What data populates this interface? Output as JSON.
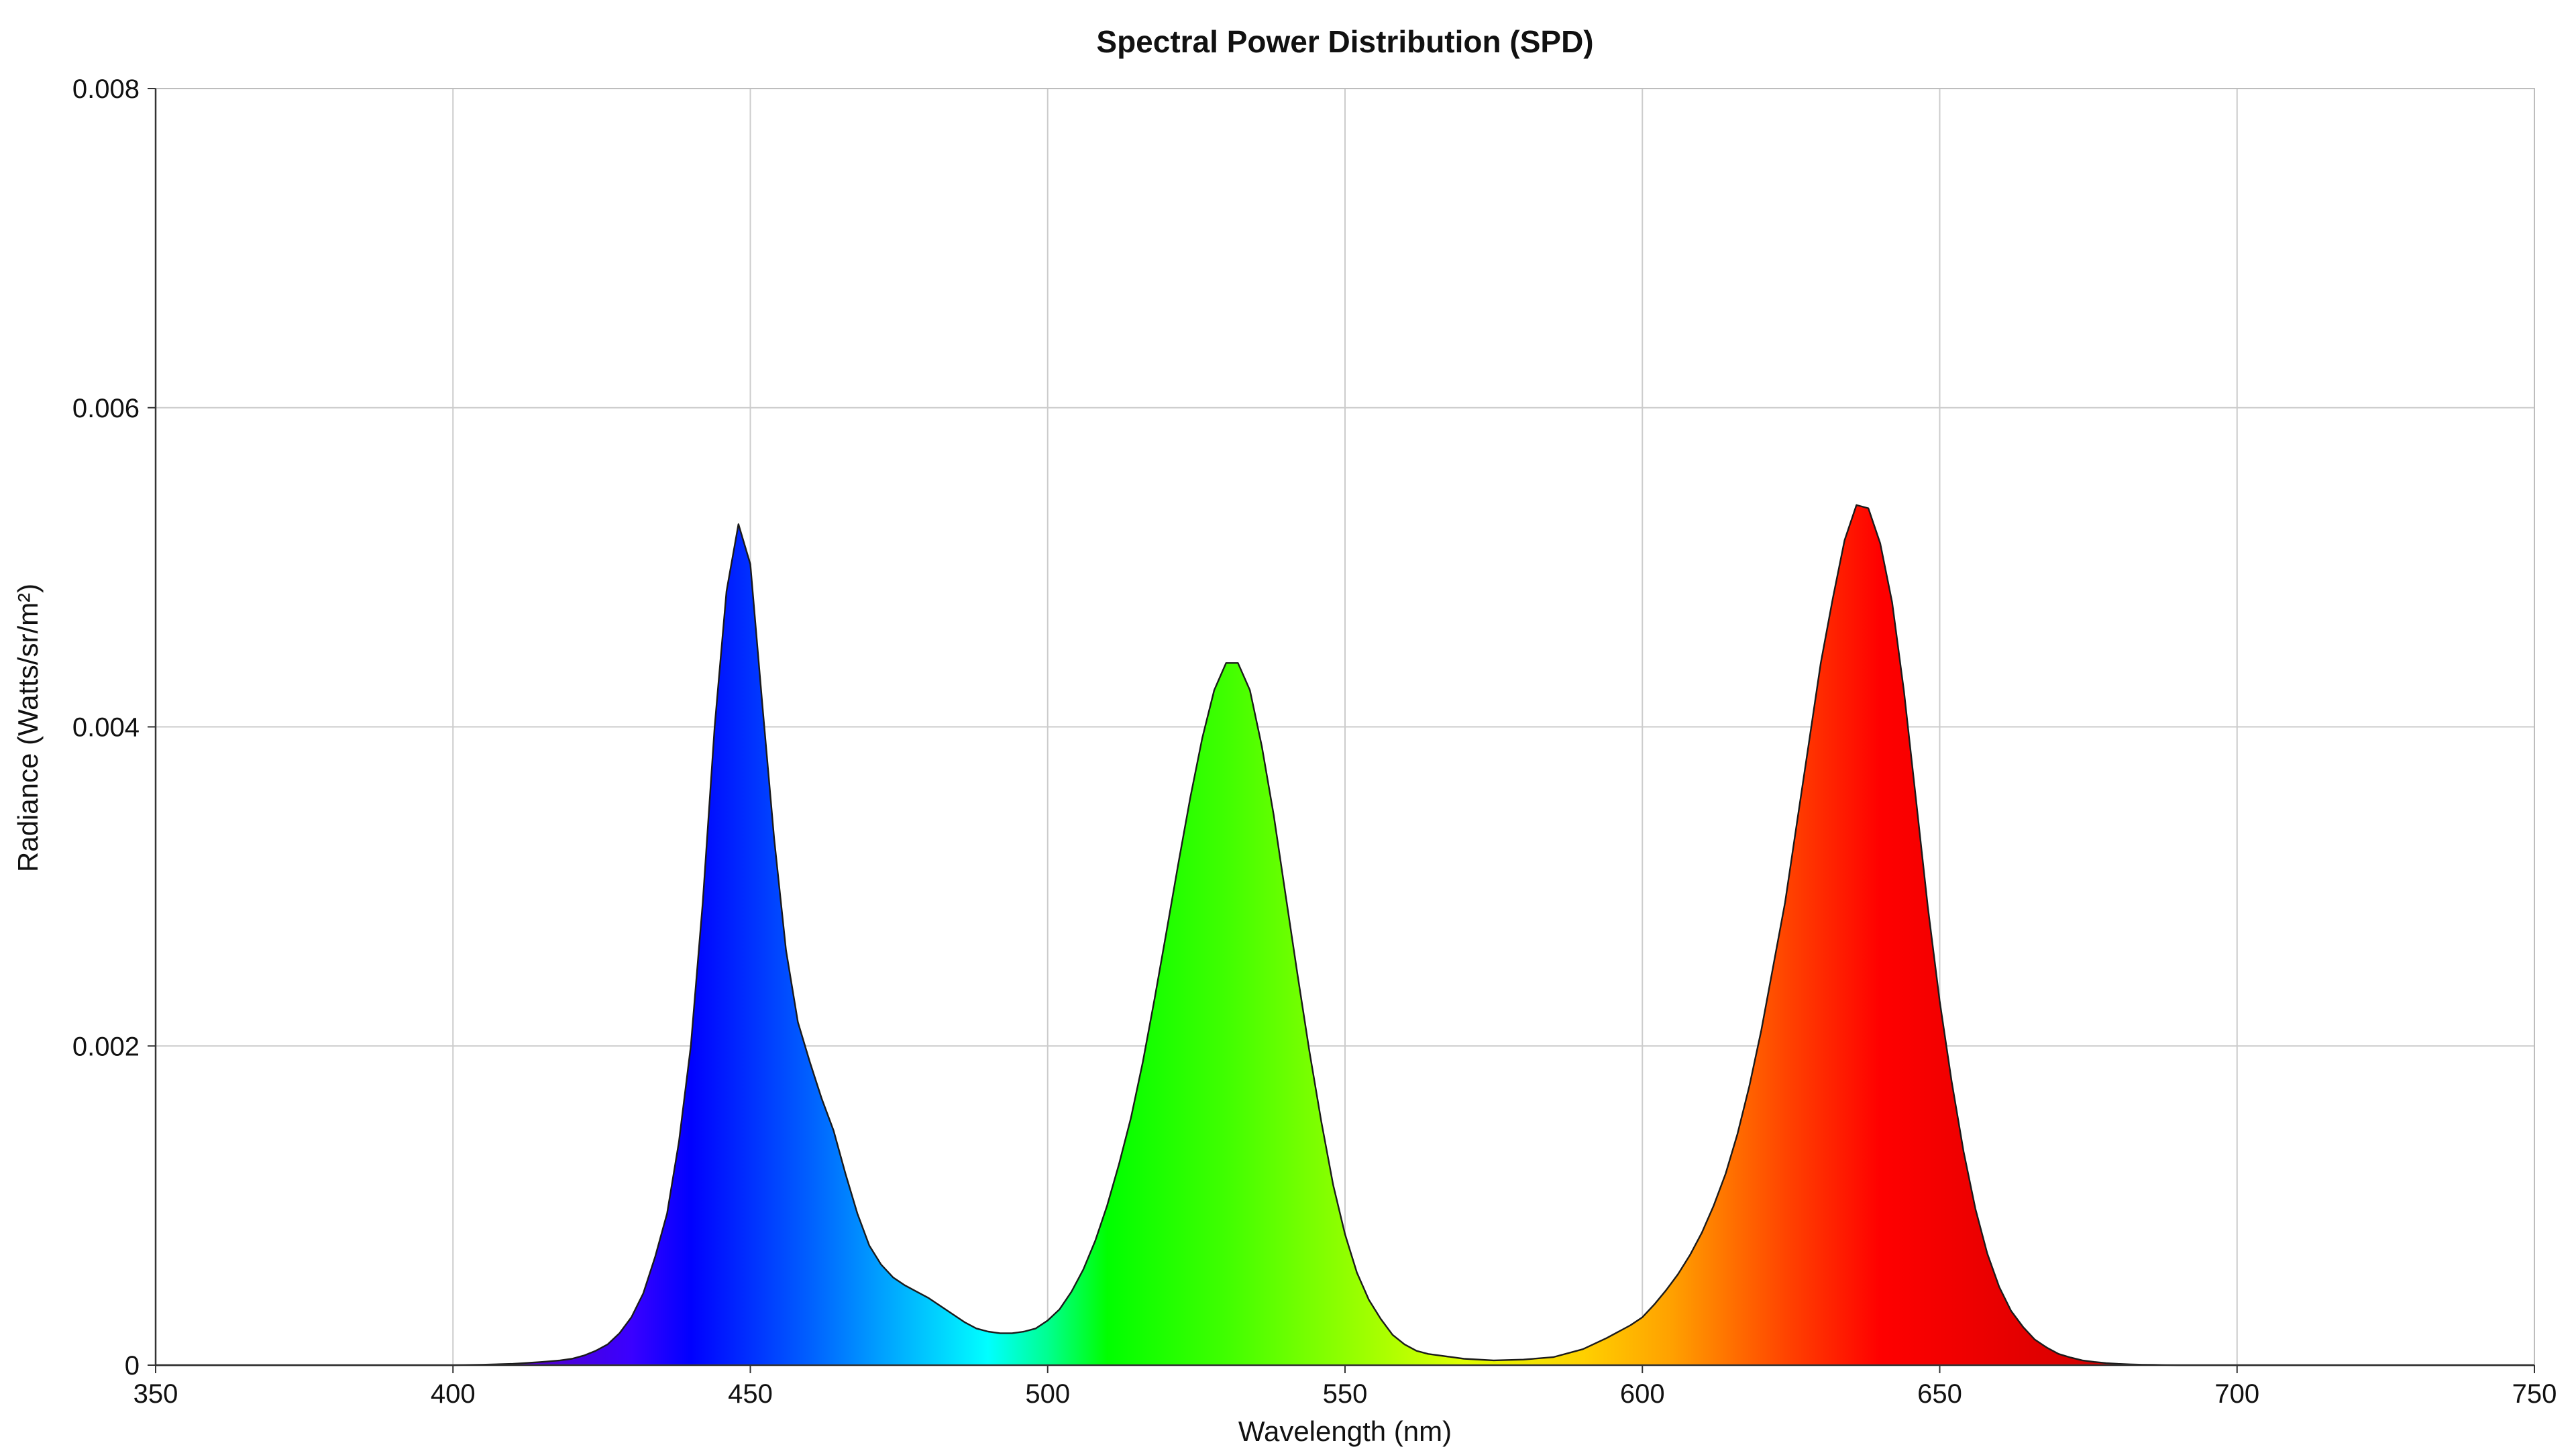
{
  "chart_data": {
    "type": "area",
    "title": "Spectral Power Distribution (SPD)",
    "xlabel": "Wavelength (nm)",
    "ylabel": "Radiance (Watts/sr/m²)",
    "xlim": [
      350,
      750
    ],
    "ylim": [
      0,
      0.008
    ],
    "x_ticks": [
      350,
      400,
      450,
      500,
      550,
      600,
      650,
      700,
      750
    ],
    "y_ticks": [
      0,
      0.002,
      0.004,
      0.006,
      0.008
    ],
    "x_tick_labels": [
      "350",
      "400",
      "450",
      "500",
      "550",
      "600",
      "650",
      "700",
      "750"
    ],
    "y_tick_labels": [
      "0",
      "0.002",
      "0.004",
      "0.006",
      "0.008"
    ],
    "grid": true,
    "fill": "visible-spectrum-gradient",
    "series": [
      {
        "x": [
          350,
          380,
          400,
          405,
          410,
          415,
          418,
          420,
          422,
          424,
          426,
          428,
          430,
          432,
          434,
          436,
          438,
          440,
          442,
          444,
          446,
          448,
          450,
          452,
          454,
          456,
          458,
          460,
          462,
          464,
          466,
          468,
          470,
          472,
          474,
          476,
          478,
          480,
          482,
          484,
          486,
          488,
          490,
          492,
          494,
          496,
          498,
          500,
          502,
          504,
          506,
          508,
          510,
          512,
          514,
          516,
          518,
          520,
          522,
          524,
          526,
          528,
          530,
          532,
          534,
          536,
          538,
          540,
          542,
          544,
          546,
          548,
          550,
          552,
          554,
          556,
          558,
          560,
          562,
          564,
          566,
          568,
          570,
          575,
          580,
          585,
          590,
          594,
          598,
          600,
          602,
          604,
          606,
          608,
          610,
          612,
          614,
          616,
          618,
          620,
          622,
          624,
          626,
          628,
          630,
          632,
          634,
          636,
          638,
          640,
          642,
          644,
          646,
          648,
          650,
          652,
          654,
          656,
          658,
          660,
          662,
          664,
          666,
          668,
          670,
          672,
          674,
          676,
          678,
          680,
          682,
          684,
          686,
          688,
          690,
          695,
          700,
          720,
          750
        ],
        "y": [
          0,
          0,
          0,
          3e-06,
          8e-06,
          2e-05,
          3e-05,
          4e-05,
          6e-05,
          9e-05,
          0.00013,
          0.0002,
          0.0003,
          0.00045,
          0.00068,
          0.00095,
          0.0014,
          0.002,
          0.0029,
          0.004,
          0.00485,
          0.00527,
          0.00502,
          0.00415,
          0.0033,
          0.0026,
          0.00215,
          0.0019,
          0.00167,
          0.00147,
          0.0012,
          0.00095,
          0.00075,
          0.00063,
          0.00055,
          0.0005,
          0.00046,
          0.00042,
          0.00037,
          0.00032,
          0.00027,
          0.00023,
          0.00021,
          0.0002,
          0.0002,
          0.00021,
          0.00023,
          0.00028,
          0.00035,
          0.00046,
          0.0006,
          0.00078,
          0.001,
          0.00126,
          0.00155,
          0.0019,
          0.0023,
          0.00272,
          0.00315,
          0.00356,
          0.00393,
          0.00423,
          0.0044,
          0.0044,
          0.00423,
          0.00388,
          0.00345,
          0.00295,
          0.00245,
          0.00197,
          0.00153,
          0.00113,
          0.00082,
          0.00058,
          0.00041,
          0.00029,
          0.00019,
          0.00013,
          9e-05,
          7e-05,
          6e-05,
          5e-05,
          4e-05,
          3e-05,
          3.5e-05,
          5e-05,
          0.0001,
          0.00017,
          0.00025,
          0.0003,
          0.00038,
          0.00047,
          0.00057,
          0.00069,
          0.00083,
          0.001,
          0.0012,
          0.00145,
          0.00175,
          0.0021,
          0.0025,
          0.0029,
          0.0034,
          0.0039,
          0.0044,
          0.0048,
          0.00517,
          0.00539,
          0.00537,
          0.00515,
          0.00478,
          0.00422,
          0.00355,
          0.00287,
          0.00228,
          0.00178,
          0.00134,
          0.00098,
          0.0007,
          0.00049,
          0.00034,
          0.00024,
          0.00016,
          0.00011,
          7e-05,
          4.8e-05,
          3e-05,
          2e-05,
          1.3e-05,
          8e-06,
          5e-06,
          3e-06,
          2e-06,
          1e-06,
          0,
          0,
          0,
          0,
          0
        ]
      }
    ]
  }
}
